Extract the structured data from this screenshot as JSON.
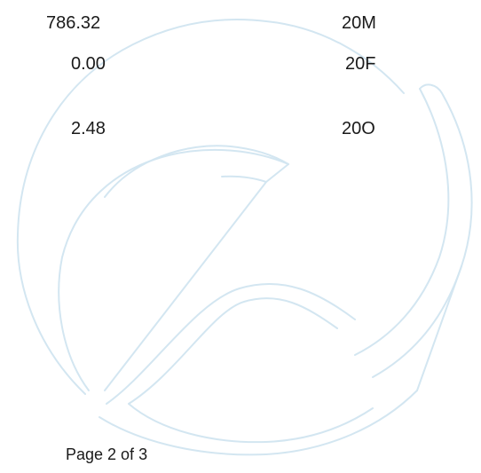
{
  "rows": [
    {
      "value": "786.32",
      "code": "20M"
    },
    {
      "value": "0.00",
      "code": "20F"
    },
    {
      "value": "2.48",
      "code": "20O"
    }
  ],
  "footer": {
    "page_label": "Page 2 of 3"
  },
  "watermark": {
    "color": "#d3e6f1"
  }
}
